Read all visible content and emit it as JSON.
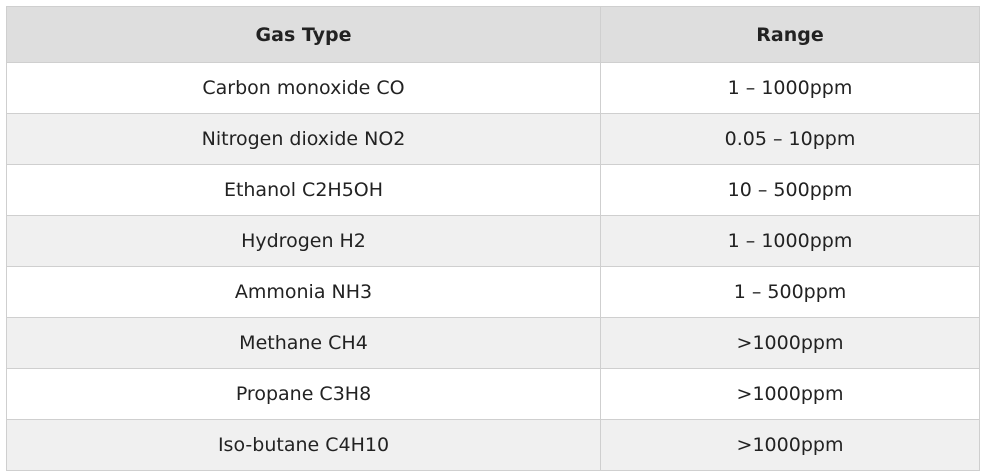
{
  "table": {
    "headers": {
      "gas_type": "Gas Type",
      "range": "Range"
    },
    "rows": [
      {
        "gas": "Carbon monoxide CO",
        "range": "1 – 1000ppm"
      },
      {
        "gas": "Nitrogen dioxide NO2",
        "range": "0.05 – 10ppm"
      },
      {
        "gas": "Ethanol C2H5OH",
        "range": "10 – 500ppm"
      },
      {
        "gas": "Hydrogen H2",
        "range": "1 – 1000ppm"
      },
      {
        "gas": "Ammonia NH3",
        "range": "1 – 500ppm"
      },
      {
        "gas": "Methane CH4",
        "range": ">1000ppm"
      },
      {
        "gas": "Propane C3H8",
        "range": ">1000ppm"
      },
      {
        "gas": "Iso-butane C4H10",
        "range": ">1000ppm"
      }
    ]
  },
  "colors": {
    "header_background": "#dedede",
    "row_stripe": "#f0f0f0",
    "border": "#cfcfcf",
    "text": "#222222"
  }
}
